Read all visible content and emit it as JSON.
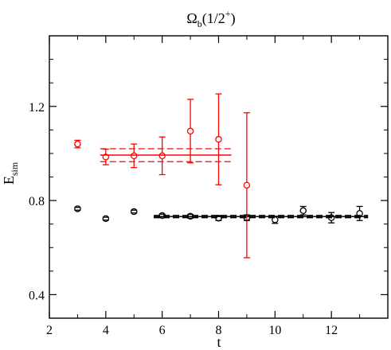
{
  "chart_data": {
    "type": "scatter",
    "title": {
      "main": "Ω",
      "sub": "b",
      "rest": "(1/2",
      "sup": "+",
      "close": ")"
    },
    "xlabel": "t",
    "ylabel": {
      "main": "E",
      "sub": "sim"
    },
    "xlim": [
      2,
      14
    ],
    "ylim": [
      0.3,
      1.5
    ],
    "xticks": [
      2,
      4,
      6,
      8,
      10,
      12
    ],
    "yticks": [
      0.4,
      0.8,
      1.2
    ],
    "series": [
      {
        "color": "#ff0000",
        "points": [
          {
            "x": 3,
            "y": 1.04,
            "err": 0.016
          },
          {
            "x": 4,
            "y": 0.985,
            "err": 0.033
          },
          {
            "x": 5,
            "y": 0.99,
            "err": 0.05
          },
          {
            "x": 6,
            "y": 0.99,
            "err": 0.08
          },
          {
            "x": 7,
            "y": 1.095,
            "err": 0.135
          },
          {
            "x": 8,
            "y": 1.06,
            "err": 0.193
          },
          {
            "x": 9,
            "y": 0.865,
            "err": 0.308
          }
        ],
        "fit": {
          "x_start": 3.8,
          "x_end": 8.45,
          "value": 0.993,
          "lower": 0.965,
          "upper": 1.02
        }
      },
      {
        "color": "#000000",
        "points": [
          {
            "x": 3,
            "y": 0.765,
            "err": 0.006
          },
          {
            "x": 4,
            "y": 0.723,
            "err": 0.006
          },
          {
            "x": 5,
            "y": 0.753,
            "err": 0.006
          },
          {
            "x": 6,
            "y": 0.736,
            "err": 0.006
          },
          {
            "x": 7,
            "y": 0.733,
            "err": 0.008
          },
          {
            "x": 8,
            "y": 0.725,
            "err": 0.01
          },
          {
            "x": 9,
            "y": 0.727,
            "err": 0.012
          },
          {
            "x": 10,
            "y": 0.718,
            "err": 0.015
          },
          {
            "x": 11,
            "y": 0.757,
            "err": 0.018
          },
          {
            "x": 12,
            "y": 0.727,
            "err": 0.022
          },
          {
            "x": 13,
            "y": 0.745,
            "err": 0.03
          }
        ],
        "fit": {
          "x_start": 5.7,
          "x_end": 13.3,
          "value": 0.732,
          "lower": 0.727,
          "upper": 0.737
        }
      }
    ],
    "grid": false,
    "legend": "none"
  }
}
